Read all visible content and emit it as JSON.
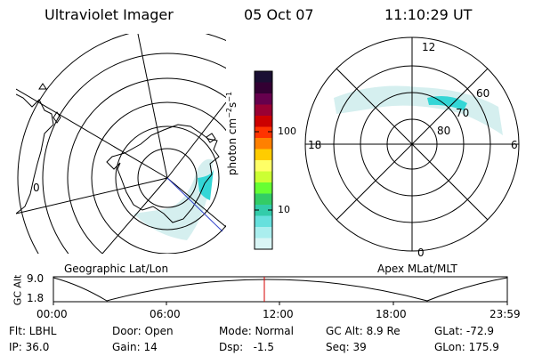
{
  "header": {
    "title": "Ultraviolet Imager",
    "date": "05 Oct 07",
    "time": "11:10:29 UT"
  },
  "geo_map": {
    "label": "Geographic Lat/Lon",
    "side_label": "0"
  },
  "colorbar": {
    "unit_main": "photon cm",
    "unit_exp1": "−2",
    "unit_mid": "s",
    "unit_exp2": "−1",
    "ticks": [
      "100",
      "10"
    ],
    "colors": [
      "#1a0f33",
      "#330033",
      "#66004d",
      "#990033",
      "#cc0000",
      "#ff3300",
      "#ff8000",
      "#ffcc00",
      "#ffff66",
      "#ccff33",
      "#66ff33",
      "#33cc66",
      "#33ccaa",
      "#66e0dd",
      "#aaeeee",
      "#d9f5f5"
    ]
  },
  "polar_map": {
    "label": "Apex MLat/MLT",
    "mlt_labels": {
      "top": "12",
      "left": "18",
      "right": "6",
      "bottom": "0"
    },
    "mlat_labels": [
      "60",
      "70",
      "80"
    ]
  },
  "altitude_plot": {
    "ylabel": "GC Alt",
    "yticks": [
      "9.0",
      "1.8"
    ],
    "xticks": [
      "00:00",
      "06:00",
      "12:00",
      "18:00",
      "23:59"
    ]
  },
  "info": {
    "filter": "Flt: LBHL",
    "ip": "IP: 36.0",
    "door": "Door: Open",
    "gain": "Gain: 14",
    "mode": "Mode: Normal",
    "dsp": "Dsp:   -1.5",
    "gc_alt": "GC Alt: 8.9 Re",
    "seq": "Seq: 39",
    "glat": "GLat: -72.9",
    "glon": "GLon: 175.9"
  },
  "colors": {
    "aurora": "#33d6d6",
    "aurora_faint": "#cfeeee",
    "marker": "#d40000",
    "boresight": "#3344cc"
  }
}
